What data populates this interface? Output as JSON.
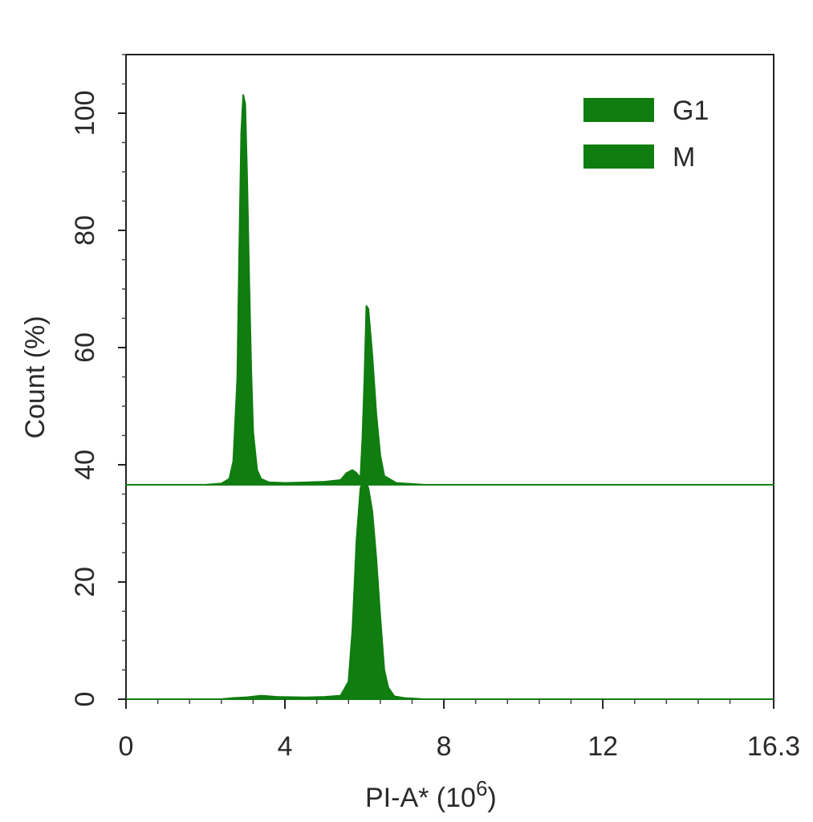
{
  "chart_data": {
    "type": "area",
    "subtype": "flow-cytometry-histogram-overlay",
    "xlabel": "PI-A* (10",
    "xlabel_exponent": "6",
    "xlabel_close": ")",
    "ylabel": "Count (%)",
    "xlim": [
      0,
      16.3
    ],
    "ylim": [
      0,
      110
    ],
    "x_ticks": [
      0,
      4,
      8,
      12,
      16.3
    ],
    "x_tick_labels": [
      "0",
      "4",
      "8",
      "12",
      "16.3"
    ],
    "y_ticks": [
      0,
      20,
      40,
      60,
      80,
      100
    ],
    "y_tick_labels": [
      "0",
      "20",
      "40",
      "60",
      "80",
      "100"
    ],
    "grid": false,
    "legend_position": "top-right",
    "color": "#0f7d0f",
    "series": [
      {
        "name": "G1",
        "offset_y": 36.6,
        "x": [
          0.0,
          2.0,
          2.4,
          2.6,
          2.7,
          2.8,
          2.85,
          2.9,
          2.95,
          3.0,
          3.05,
          3.1,
          3.15,
          3.2,
          3.3,
          3.4,
          3.6,
          4.0,
          5.0,
          5.4,
          5.55,
          5.7,
          5.8,
          5.9,
          5.95,
          6.0,
          6.05,
          6.1,
          6.2,
          6.3,
          6.4,
          6.5,
          6.8,
          7.5,
          16.3
        ],
        "values": [
          0,
          0,
          0.2,
          1.0,
          4.0,
          18.0,
          40.0,
          60.0,
          66.5,
          65.0,
          52.0,
          35.0,
          20.0,
          9.0,
          2.5,
          1.0,
          0.4,
          0.3,
          0.5,
          0.8,
          2.0,
          2.5,
          2.0,
          1.2,
          8.0,
          18.0,
          30.5,
          30.0,
          22.0,
          12.0,
          5.0,
          1.5,
          0.3,
          0,
          0
        ]
      },
      {
        "name": "M",
        "offset_y": 0,
        "x": [
          0.0,
          2.4,
          2.7,
          3.0,
          3.4,
          3.8,
          4.5,
          5.0,
          5.4,
          5.6,
          5.7,
          5.8,
          5.9,
          6.0,
          6.1,
          6.2,
          6.3,
          6.4,
          6.5,
          6.6,
          6.75,
          7.0,
          7.5,
          16.3
        ],
        "values": [
          0,
          0,
          0.2,
          0.3,
          0.6,
          0.4,
          0.3,
          0.4,
          0.6,
          3.0,
          12.0,
          27.0,
          36.0,
          37.8,
          36.0,
          32.0,
          24.0,
          14.0,
          5.0,
          2.0,
          0.5,
          0.2,
          0,
          0
        ]
      }
    ]
  }
}
